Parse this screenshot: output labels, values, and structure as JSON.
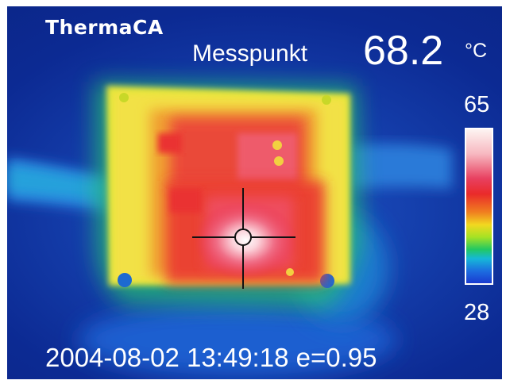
{
  "overlay": {
    "brand": "ThermaCA",
    "measure_label": "Messpunkt",
    "measure_value": "68.2",
    "measure_unit": "°C",
    "scale_max": "65",
    "scale_min": "28",
    "timestamp": "2004-08-02 13:49:18",
    "emissivity": "e=0.95"
  },
  "colors": {
    "background": "#0c2a93",
    "board": "#f2d820",
    "hot": "#ea2a2a",
    "hotspot": "#fdf4f2"
  }
}
